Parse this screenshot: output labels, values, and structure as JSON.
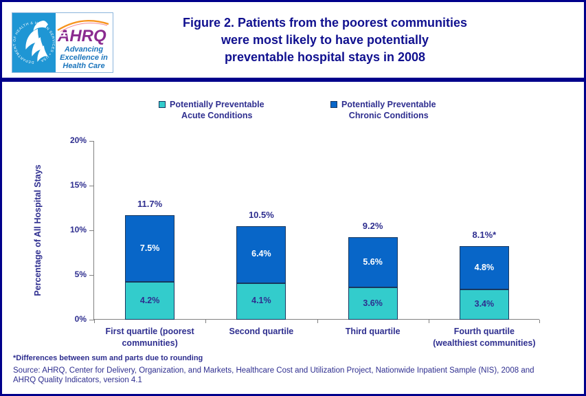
{
  "header": {
    "title_lines": [
      "Figure 2. Patients from the poorest communities",
      "were most likely to have potentially",
      "preventable hospital stays in 2008"
    ],
    "logo": {
      "ahrq_wordmark": "AHRQ",
      "tagline_lines": [
        "Advancing",
        "Excellence in",
        "Health Care"
      ],
      "hhs_ring_text": "DEPARTMENT OF HEALTH & HUMAN SERVICES • USA",
      "hhs_blue": "#1F96D4",
      "ahrq_purple": "#8A2A8F",
      "tagline_blue": "#1B75BC",
      "arc_orange": "#F7941D"
    }
  },
  "legend": {
    "items": [
      {
        "lines": [
          "Potentially Preventable",
          "Acute Conditions"
        ]
      },
      {
        "lines": [
          "Potentially Preventable",
          "Chronic Conditions"
        ]
      }
    ]
  },
  "chart_data": {
    "type": "bar",
    "stacked": true,
    "title": "Figure 2. Patients from the poorest communities were most likely to have potentially preventable hospital stays in 2008",
    "xlabel": "",
    "ylabel": "Percentage of All Hospital Stays",
    "ylim": [
      0,
      20
    ],
    "ytick_values": [
      0,
      5,
      10,
      15,
      20
    ],
    "ytick_labels": [
      "0%",
      "5%",
      "10%",
      "15%",
      "20%"
    ],
    "grid": false,
    "legend_position": "top",
    "categories": [
      "First quartile (poorest communities)",
      "Second quartile",
      "Third quartile",
      "Fourth quartile (wealthiest communities)"
    ],
    "category_label_lines": [
      [
        "First quartile (poorest",
        "communities)"
      ],
      [
        "Second quartile"
      ],
      [
        "Third quartile"
      ],
      [
        "Fourth quartile",
        "(wealthiest communities)"
      ]
    ],
    "series": [
      {
        "name": "Potentially Preventable Acute Conditions",
        "color": "#33CCCC",
        "values": [
          4.2,
          4.1,
          3.6,
          3.4
        ]
      },
      {
        "name": "Potentially Preventable Chronic Conditions",
        "color": "#0866C8",
        "values": [
          7.5,
          6.4,
          5.6,
          4.8
        ]
      }
    ],
    "series_label_colors": [
      "#2E2E8F",
      "#FFFFFF"
    ],
    "total_labels": [
      "11.7%",
      "10.5%",
      "9.2%",
      "8.1%*"
    ],
    "axis_color": "#808080",
    "bar_border_color": "#17375E",
    "label_color": "#2E2E8F"
  },
  "footnotes": {
    "note": "*Differences between sum and parts due to rounding",
    "source_lines": [
      "Source: AHRQ, Center for Delivery, Organization, and Markets, Healthcare Cost and Utilization Project, Nationwide Inpatient Sample (NIS), 2008 and",
      "AHRQ Quality Indicators, version 4.1"
    ]
  }
}
